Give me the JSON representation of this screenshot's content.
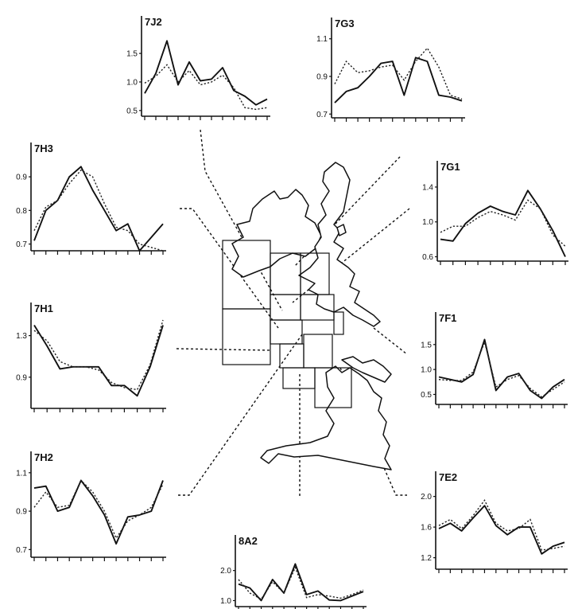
{
  "chart_data": [
    {
      "id": "7J2",
      "type": "line",
      "title": "7J2",
      "yticks": [
        "1.5",
        "1.0",
        "0.5"
      ],
      "ylim": [
        0.4,
        1.85
      ],
      "series": [
        {
          "values": [
            0.8,
            1.15,
            1.72,
            0.95,
            1.35,
            1.02,
            1.05,
            1.25,
            0.85,
            0.75,
            0.6,
            0.7
          ]
        },
        {
          "values": [
            0.98,
            1.1,
            1.3,
            1.0,
            1.2,
            0.95,
            1.0,
            1.12,
            0.9,
            0.55,
            0.52,
            0.55
          ]
        }
      ]
    },
    {
      "id": "7G3",
      "type": "line",
      "title": "7G3",
      "yticks": [
        "1.1",
        "0.9",
        "0.7"
      ],
      "ylim": [
        0.68,
        1.12
      ],
      "series": [
        {
          "values": [
            0.76,
            0.82,
            0.84,
            0.9,
            0.97,
            0.98,
            0.8,
            1.0,
            0.98,
            0.8,
            0.79,
            0.77
          ]
        },
        {
          "values": [
            0.86,
            0.98,
            0.92,
            0.93,
            0.95,
            0.96,
            0.88,
            0.98,
            1.05,
            0.95,
            0.8,
            0.78
          ]
        }
      ]
    },
    {
      "id": "7H3",
      "type": "line",
      "title": "7H3",
      "yticks": [
        "0.9",
        "0.8",
        "0.7"
      ],
      "ylim": [
        0.68,
        0.95
      ],
      "series": [
        {
          "values": [
            0.71,
            0.8,
            0.83,
            0.9,
            0.93,
            0.86,
            0.8,
            0.74,
            0.76,
            0.68,
            0.72,
            0.76
          ]
        },
        {
          "values": [
            0.74,
            0.81,
            0.83,
            0.88,
            0.92,
            0.9,
            0.82,
            0.75,
            0.74,
            0.7,
            0.69,
            0.68
          ]
        }
      ]
    },
    {
      "id": "7G1",
      "type": "line",
      "title": "7G1",
      "yticks": [
        "1.4",
        "1.0",
        "0.6"
      ],
      "ylim": [
        0.55,
        1.5
      ],
      "series": [
        {
          "values": [
            0.8,
            0.78,
            0.98,
            1.1,
            1.18,
            1.12,
            1.08,
            1.36,
            1.15,
            0.9,
            0.6
          ]
        },
        {
          "values": [
            0.88,
            0.95,
            0.95,
            1.05,
            1.12,
            1.08,
            1.02,
            1.25,
            1.15,
            0.85,
            0.72
          ]
        }
      ]
    },
    {
      "id": "7H1",
      "type": "line",
      "title": "7H1",
      "yticks": [
        "1.3",
        "0.9"
      ],
      "ylim": [
        0.6,
        1.45
      ],
      "series": [
        {
          "values": [
            1.4,
            1.2,
            0.98,
            1.0,
            1.0,
            1.0,
            0.82,
            0.82,
            0.72,
            1.0,
            1.4
          ]
        },
        {
          "values": [
            1.35,
            1.25,
            1.05,
            1.0,
            1.0,
            0.97,
            0.85,
            0.8,
            0.78,
            1.02,
            1.45
          ]
        }
      ]
    },
    {
      "id": "7F1",
      "type": "line",
      "title": "7F1",
      "yticks": [
        "1.5",
        "1.0",
        "0.5"
      ],
      "ylim": [
        0.3,
        1.8
      ],
      "series": [
        {
          "values": [
            0.85,
            0.8,
            0.75,
            0.9,
            1.6,
            0.58,
            0.85,
            0.92,
            0.58,
            0.42,
            0.65,
            0.8
          ]
        },
        {
          "values": [
            0.8,
            0.78,
            0.78,
            0.95,
            1.55,
            0.65,
            0.8,
            0.88,
            0.62,
            0.45,
            0.6,
            0.75
          ]
        }
      ]
    },
    {
      "id": "7H2",
      "type": "line",
      "title": "7H2",
      "yticks": [
        "1.1",
        "0.9",
        "0.7"
      ],
      "ylim": [
        0.66,
        1.12
      ],
      "series": [
        {
          "values": [
            1.02,
            1.03,
            0.9,
            0.92,
            1.06,
            0.98,
            0.88,
            0.73,
            0.87,
            0.88,
            0.9,
            1.06
          ]
        },
        {
          "values": [
            0.92,
            1.0,
            0.92,
            0.93,
            1.06,
            1.0,
            0.9,
            0.76,
            0.85,
            0.88,
            0.92,
            1.04
          ]
        }
      ]
    },
    {
      "id": "8A2",
      "type": "line",
      "title": "8A2",
      "yticks": [
        "2.0",
        "1.0"
      ],
      "ylim": [
        0.8,
        2.6
      ],
      "series": [
        {
          "values": [
            1.55,
            1.42,
            1.0,
            1.7,
            1.25,
            2.22,
            1.2,
            1.32,
            1.02,
            1.0,
            1.15,
            1.3
          ]
        },
        {
          "values": [
            1.7,
            1.25,
            1.05,
            1.62,
            1.25,
            2.1,
            1.1,
            1.2,
            1.15,
            1.08,
            1.2,
            1.35
          ]
        }
      ]
    },
    {
      "id": "7E2",
      "type": "line",
      "title": "7E2",
      "yticks": [
        "2.0",
        "1.6",
        "1.2"
      ],
      "ylim": [
        1.05,
        2.1
      ],
      "series": [
        {
          "values": [
            1.58,
            1.65,
            1.55,
            1.72,
            1.88,
            1.62,
            1.5,
            1.6,
            1.6,
            1.25,
            1.35,
            1.4
          ]
        },
        {
          "values": [
            1.62,
            1.7,
            1.58,
            1.75,
            1.95,
            1.65,
            1.55,
            1.58,
            1.7,
            1.3,
            1.32,
            1.35
          ]
        }
      ]
    }
  ]
}
